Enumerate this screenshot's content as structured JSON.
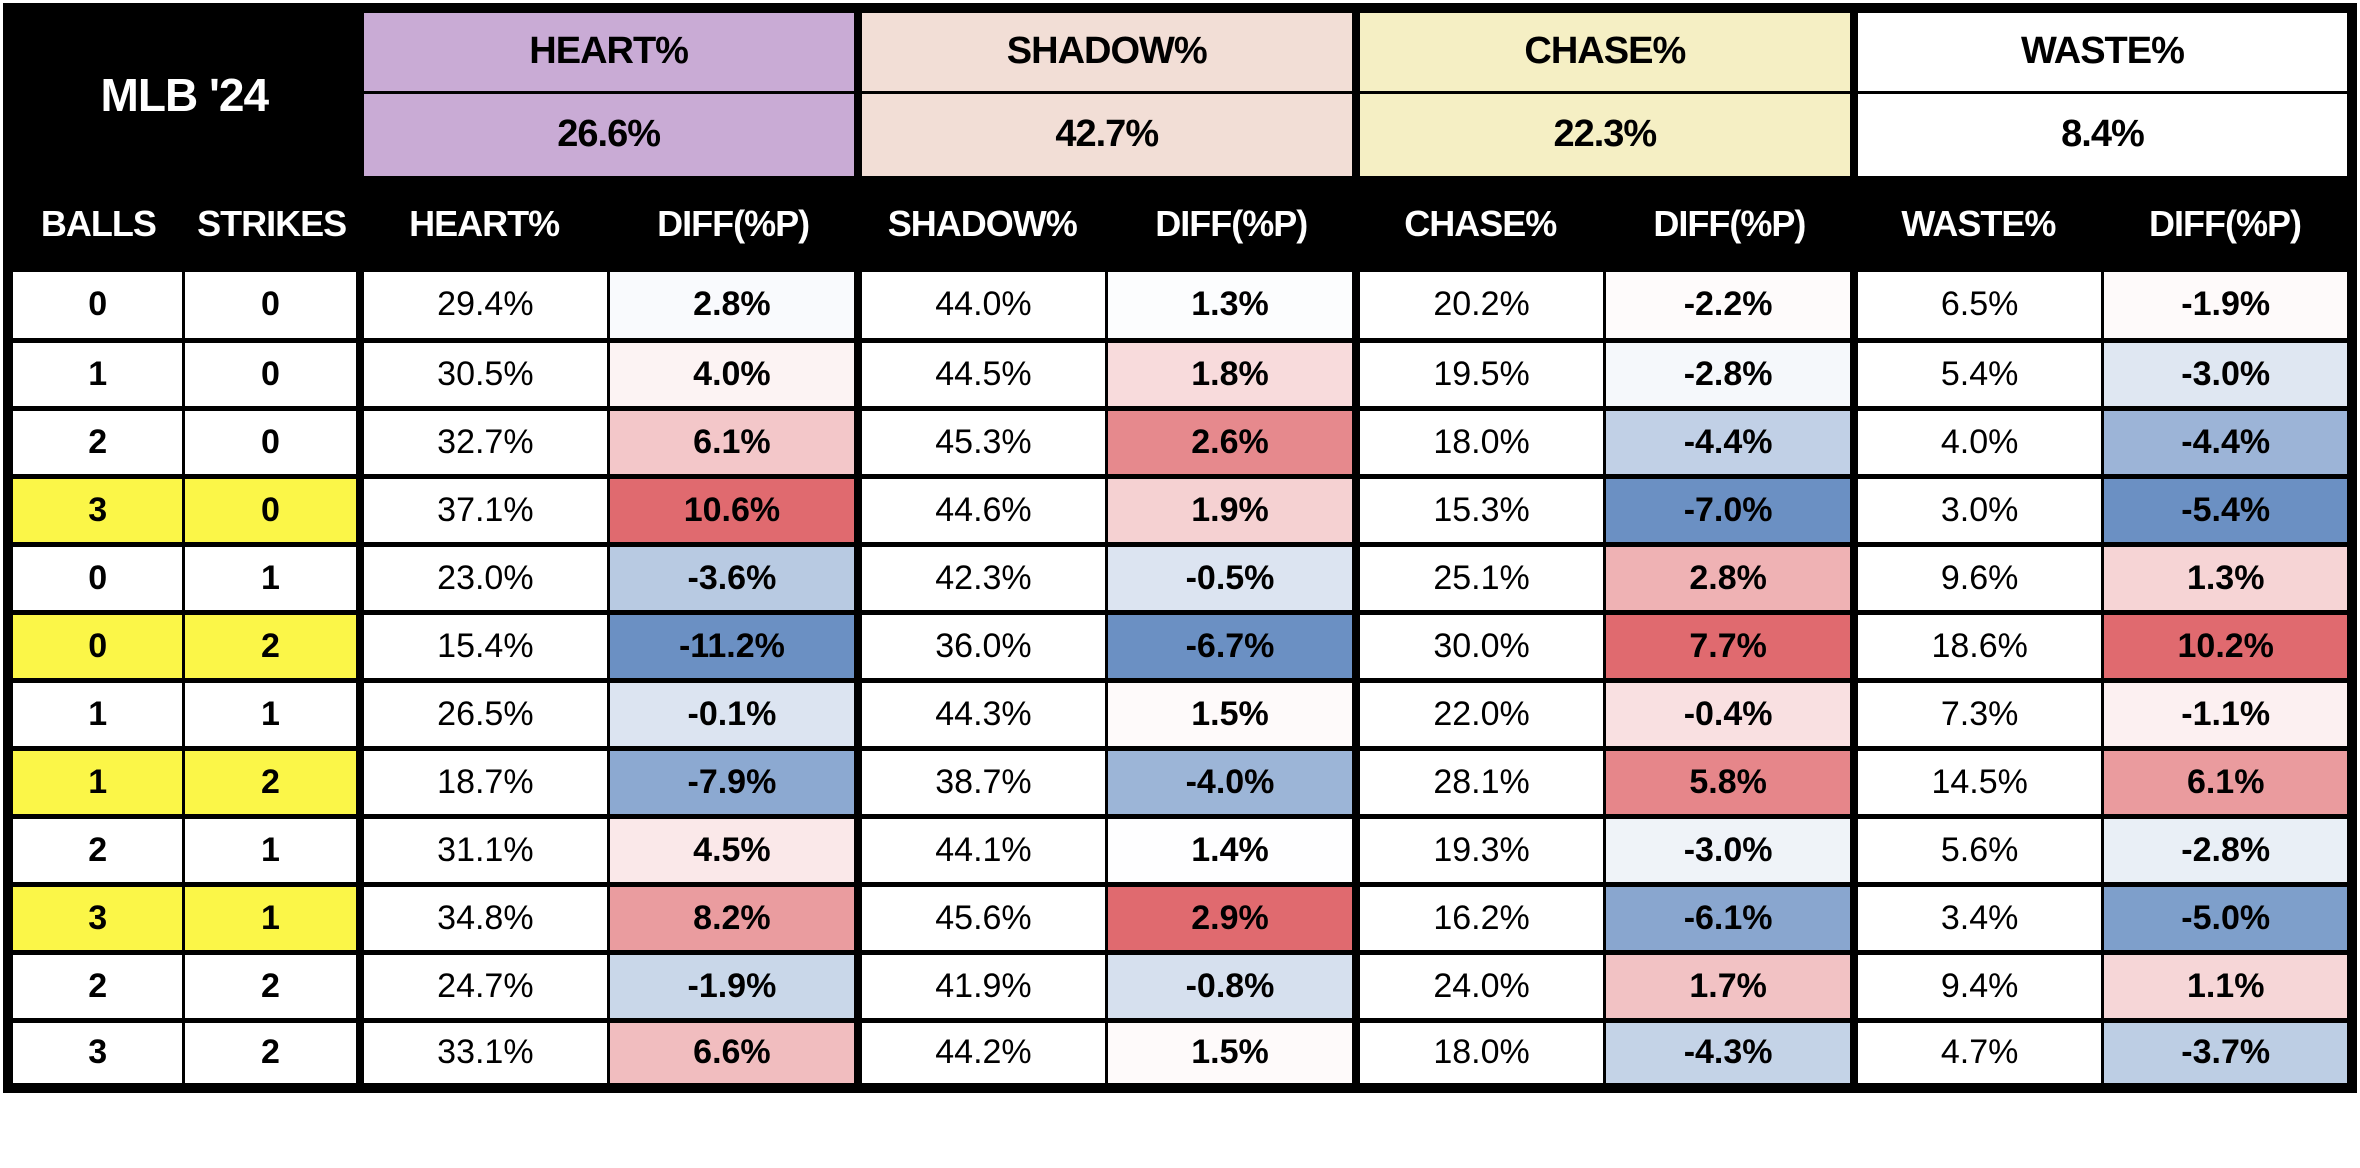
{
  "colors": {
    "header_bg": "#000000",
    "header_text": "#FFFFFF",
    "highlight_yellow": "#FBF648",
    "diff_scale_negative": "#6B90C3",
    "diff_scale_midpoint": "#FFFFFF",
    "diff_scale_positive": "#E06A6F"
  },
  "chart_data": {
    "type": "table",
    "title": "MLB '24",
    "column_groups": [
      {
        "label": "HEART%",
        "overall": 26.6,
        "color": "#C9ABD5"
      },
      {
        "label": "SHADOW%",
        "overall": 42.7,
        "color": "#F2DED6"
      },
      {
        "label": "CHASE%",
        "overall": 22.3,
        "color": "#F5EFC4"
      },
      {
        "label": "WASTE%",
        "overall": 8.4,
        "color": "#FFFFFF"
      }
    ],
    "columns": [
      "BALLS",
      "STRIKES",
      "HEART%",
      "DIFF(%P)",
      "SHADOW%",
      "DIFF(%P)",
      "CHASE%",
      "DIFF(%P)",
      "WASTE%",
      "DIFF(%P)"
    ],
    "diff_color_rule": "per-column 3-color scale: column min = diff_scale_negative, column median = diff_scale_midpoint, column max = diff_scale_positive",
    "rows": [
      {
        "balls": 0,
        "strikes": 0,
        "highlight": false,
        "heart": 29.4,
        "heart_diff": 2.8,
        "shadow": 44.0,
        "shadow_diff": 1.3,
        "chase": 20.2,
        "chase_diff": -2.2,
        "waste": 6.5,
        "waste_diff": -1.9
      },
      {
        "balls": 1,
        "strikes": 0,
        "highlight": false,
        "heart": 30.5,
        "heart_diff": 4.0,
        "shadow": 44.5,
        "shadow_diff": 1.8,
        "chase": 19.5,
        "chase_diff": -2.8,
        "waste": 5.4,
        "waste_diff": -3.0
      },
      {
        "balls": 2,
        "strikes": 0,
        "highlight": false,
        "heart": 32.7,
        "heart_diff": 6.1,
        "shadow": 45.3,
        "shadow_diff": 2.6,
        "chase": 18.0,
        "chase_diff": -4.4,
        "waste": 4.0,
        "waste_diff": -4.4
      },
      {
        "balls": 3,
        "strikes": 0,
        "highlight": true,
        "heart": 37.1,
        "heart_diff": 10.6,
        "shadow": 44.6,
        "shadow_diff": 1.9,
        "chase": 15.3,
        "chase_diff": -7.0,
        "waste": 3.0,
        "waste_diff": -5.4
      },
      {
        "balls": 0,
        "strikes": 1,
        "highlight": false,
        "heart": 23.0,
        "heart_diff": -3.6,
        "shadow": 42.3,
        "shadow_diff": -0.5,
        "chase": 25.1,
        "chase_diff": 2.8,
        "waste": 9.6,
        "waste_diff": 1.3
      },
      {
        "balls": 0,
        "strikes": 2,
        "highlight": true,
        "heart": 15.4,
        "heart_diff": -11.2,
        "shadow": 36.0,
        "shadow_diff": -6.7,
        "chase": 30.0,
        "chase_diff": 7.7,
        "waste": 18.6,
        "waste_diff": 10.2
      },
      {
        "balls": 1,
        "strikes": 1,
        "highlight": false,
        "heart": 26.5,
        "heart_diff": -0.1,
        "shadow": 44.3,
        "shadow_diff": 1.5,
        "chase": 22.0,
        "chase_diff": -0.4,
        "waste": 7.3,
        "waste_diff": -1.1
      },
      {
        "balls": 1,
        "strikes": 2,
        "highlight": true,
        "heart": 18.7,
        "heart_diff": -7.9,
        "shadow": 38.7,
        "shadow_diff": -4.0,
        "chase": 28.1,
        "chase_diff": 5.8,
        "waste": 14.5,
        "waste_diff": 6.1
      },
      {
        "balls": 2,
        "strikes": 1,
        "highlight": false,
        "heart": 31.1,
        "heart_diff": 4.5,
        "shadow": 44.1,
        "shadow_diff": 1.4,
        "chase": 19.3,
        "chase_diff": -3.0,
        "waste": 5.6,
        "waste_diff": -2.8
      },
      {
        "balls": 3,
        "strikes": 1,
        "highlight": true,
        "heart": 34.8,
        "heart_diff": 8.2,
        "shadow": 45.6,
        "shadow_diff": 2.9,
        "chase": 16.2,
        "chase_diff": -6.1,
        "waste": 3.4,
        "waste_diff": -5.0
      },
      {
        "balls": 2,
        "strikes": 2,
        "highlight": false,
        "heart": 24.7,
        "heart_diff": -1.9,
        "shadow": 41.9,
        "shadow_diff": -0.8,
        "chase": 24.0,
        "chase_diff": 1.7,
        "waste": 9.4,
        "waste_diff": 1.1
      },
      {
        "balls": 3,
        "strikes": 2,
        "highlight": false,
        "heart": 33.1,
        "heart_diff": 6.6,
        "shadow": 44.2,
        "shadow_diff": 1.5,
        "chase": 18.0,
        "chase_diff": -4.3,
        "waste": 4.7,
        "waste_diff": -3.7
      }
    ]
  }
}
